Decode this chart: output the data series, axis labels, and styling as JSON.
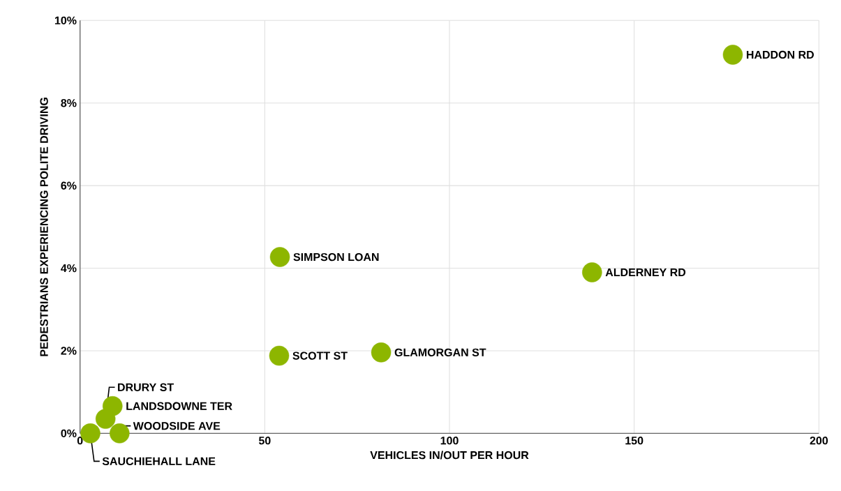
{
  "chart_data": {
    "type": "scatter",
    "xlabel": "VEHICLES IN/OUT PER HOUR",
    "ylabel": "PEDESTRIANS EXPERIENCING POLITE DRIVING",
    "x": [
      176.7,
      138.6,
      54.1,
      53.9,
      81.5,
      8.8,
      6.9,
      10.7,
      2.8
    ],
    "values": [
      9.17,
      3.9,
      4.27,
      1.88,
      1.96,
      0.66,
      0.35,
      0.0,
      0.0
    ],
    "color": "#8db600",
    "marker": "circle",
    "xlim": [
      0,
      200
    ],
    "xticks": [
      0,
      50,
      100,
      150,
      200
    ],
    "ylim": [
      0,
      10
    ],
    "yticks": [
      {
        "value": 0,
        "label": "0%"
      },
      {
        "value": 2,
        "label": "2%"
      },
      {
        "value": 4,
        "label": "4%"
      },
      {
        "value": 6,
        "label": "6%"
      },
      {
        "value": 8,
        "label": "8%"
      },
      {
        "value": 10,
        "label": "10%"
      }
    ],
    "grid": true,
    "annotations": [
      {
        "text": "HADDON RD",
        "x": 176.7,
        "y": 9.17
      },
      {
        "text": "ALDERNEY RD",
        "x": 138.6,
        "y": 3.9
      },
      {
        "text": "SIMPSON LOAN",
        "x": 54.1,
        "y": 4.27
      },
      {
        "text": "SCOTT ST",
        "x": 53.9,
        "y": 1.88
      },
      {
        "text": "GLAMORGAN ST",
        "x": 81.5,
        "y": 1.96
      },
      {
        "text": "LANDSDOWNE TER",
        "x": 8.8,
        "y": 0.66
      },
      {
        "text": "DRURY ST",
        "x": 6.9,
        "y": 0.35
      },
      {
        "text": "WOODSIDE AVE",
        "x": 10.7,
        "y": 0.0
      },
      {
        "text": "SAUCHIEHALL LANE",
        "x": 2.8,
        "y": 0.0
      }
    ]
  }
}
